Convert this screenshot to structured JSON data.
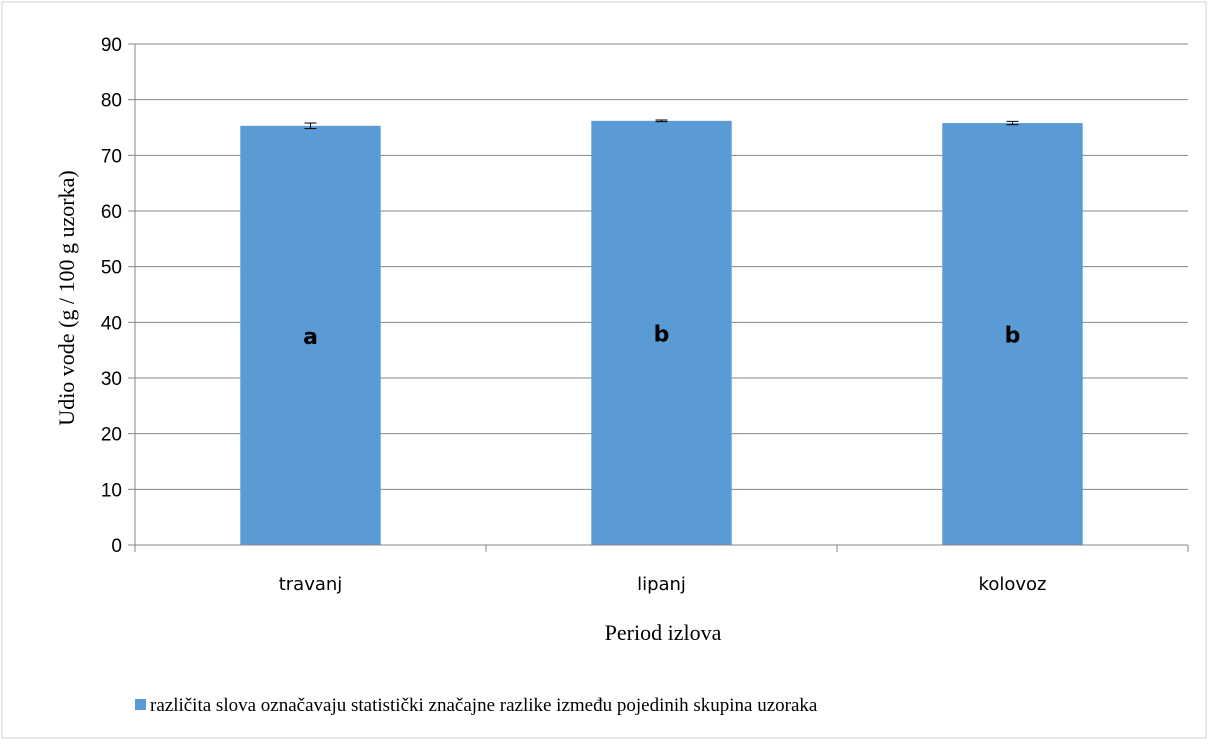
{
  "colors": {
    "bar": "#5b9bd5",
    "gridline": "#868686",
    "axis": "#868686",
    "border": "#d0d0d0",
    "error_bar": "#000000"
  },
  "chart_data": {
    "type": "bar",
    "categories": [
      "travanj",
      "lipanj",
      "kolovoz"
    ],
    "series": [
      {
        "values": [
          75.3,
          76.2,
          75.8
        ],
        "error": [
          0.5,
          0.15,
          0.3
        ],
        "bar_labels": [
          "a",
          "b",
          "b"
        ]
      }
    ],
    "title": "",
    "xlabel": "Period izlova",
    "ylabel": "Udio vode (g / 100 g uzorka)",
    "ylim": [
      0,
      90
    ],
    "yticks": [
      0,
      10,
      20,
      30,
      40,
      50,
      60,
      70,
      80,
      90
    ],
    "grid": true,
    "legend": {
      "position": "bottom",
      "entries": [
        "različita slova označavaju statistički značajne razlike između pojedinih skupina uzoraka"
      ]
    }
  }
}
